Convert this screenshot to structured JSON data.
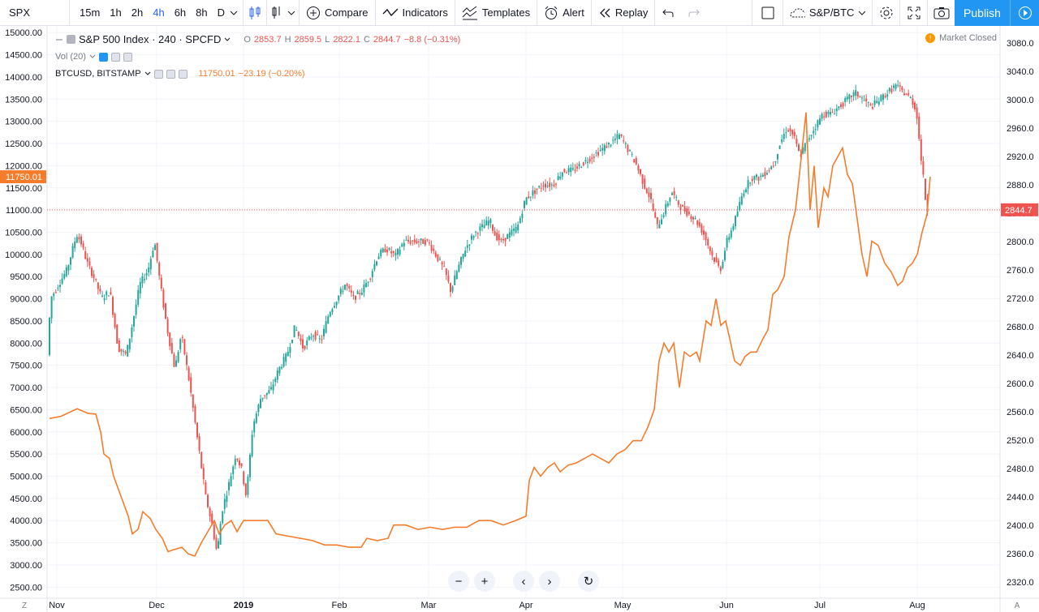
{
  "toolbar": {
    "symbol": "SPX",
    "intervals": [
      "15m",
      "1h",
      "2h",
      "4h",
      "6h",
      "8h",
      "D"
    ],
    "active_interval": "4h",
    "compare": "Compare",
    "indicators": "Indicators",
    "templates": "Templates",
    "alert": "Alert",
    "replay": "Replay",
    "layout_name": "S&P/BTC",
    "publish": "Publish"
  },
  "legend": {
    "main": {
      "title": "S&P 500 Index · 240 · SPCFD",
      "o_label": "O",
      "o": "2853.7",
      "h_label": "H",
      "h": "2859.5",
      "l_label": "L",
      "l": "2822.1",
      "c_label": "C",
      "c": "2844.7",
      "change": "−8.8 (−0.31%)"
    },
    "vol": "Vol (20)",
    "btc": {
      "title": "BTCUSD, BITSTAMP",
      "price": "11750.01",
      "change": "−23.19 (−0.20%)"
    }
  },
  "market_status": "Market Closed",
  "colors": {
    "up": "#26a69a",
    "down": "#ef5350",
    "btc": "#f57c2b",
    "grid": "#f0f3fa",
    "accent": "#2196f3"
  },
  "chart_data": {
    "type": "line",
    "x_labels": [
      "Nov",
      "Dec",
      "2019",
      "Feb",
      "Mar",
      "Apr",
      "May",
      "Jun",
      "Jul",
      "Aug"
    ],
    "left_axis": {
      "ticks": [
        2500,
        3000,
        3500,
        4000,
        4500,
        5000,
        5500,
        6000,
        6500,
        7000,
        7500,
        8000,
        8500,
        9000,
        9500,
        10000,
        10500,
        11000,
        11500,
        12000,
        12500,
        13000,
        13500,
        14000,
        14500,
        15000
      ],
      "range": [
        2250,
        15150
      ],
      "last_label": "11750.01"
    },
    "right_axis": {
      "ticks": [
        2320,
        2360,
        2400,
        2440,
        2480,
        2520,
        2560,
        2600,
        2640,
        2680,
        2720,
        2760,
        2800,
        2840,
        2880,
        2920,
        2960,
        3000,
        3040,
        3080
      ],
      "range": [
        2297,
        3104
      ],
      "last_label": "2844.7"
    },
    "series": [
      {
        "name": "BTCUSD, BITSTAMP",
        "axis": "left",
        "points": [
          [
            61,
            6300
          ],
          [
            75,
            6350
          ],
          [
            95,
            6520
          ],
          [
            108,
            6420
          ],
          [
            118,
            6400
          ],
          [
            124,
            6000
          ],
          [
            128,
            5500
          ],
          [
            135,
            5400
          ],
          [
            140,
            5000
          ],
          [
            148,
            4600
          ],
          [
            158,
            4100
          ],
          [
            163,
            3700
          ],
          [
            170,
            3800
          ],
          [
            176,
            4200
          ],
          [
            185,
            4050
          ],
          [
            192,
            3800
          ],
          [
            200,
            3600
          ],
          [
            207,
            3300
          ],
          [
            215,
            3350
          ],
          [
            224,
            3400
          ],
          [
            232,
            3250
          ],
          [
            240,
            3200
          ],
          [
            248,
            3500
          ],
          [
            256,
            3750
          ],
          [
            264,
            4000
          ],
          [
            270,
            3700
          ],
          [
            277,
            3900
          ],
          [
            285,
            4000
          ],
          [
            292,
            3750
          ],
          [
            300,
            4000
          ],
          [
            315,
            4000
          ],
          [
            330,
            4000
          ],
          [
            340,
            3700
          ],
          [
            355,
            3650
          ],
          [
            370,
            3600
          ],
          [
            385,
            3550
          ],
          [
            400,
            3450
          ],
          [
            415,
            3450
          ],
          [
            430,
            3400
          ],
          [
            445,
            3400
          ],
          [
            452,
            3600
          ],
          [
            465,
            3550
          ],
          [
            478,
            3600
          ],
          [
            485,
            3900
          ],
          [
            500,
            3900
          ],
          [
            515,
            3800
          ],
          [
            530,
            3850
          ],
          [
            545,
            3800
          ],
          [
            560,
            3850
          ],
          [
            575,
            3850
          ],
          [
            590,
            4000
          ],
          [
            605,
            4000
          ],
          [
            620,
            3900
          ],
          [
            635,
            4000
          ],
          [
            648,
            4100
          ],
          [
            652,
            4900
          ],
          [
            658,
            5200
          ],
          [
            666,
            5000
          ],
          [
            675,
            5200
          ],
          [
            683,
            5300
          ],
          [
            690,
            5100
          ],
          [
            700,
            5250
          ],
          [
            710,
            5300
          ],
          [
            720,
            5400
          ],
          [
            730,
            5500
          ],
          [
            740,
            5400
          ],
          [
            750,
            5300
          ],
          [
            760,
            5500
          ],
          [
            770,
            5600
          ],
          [
            780,
            5800
          ],
          [
            790,
            5800
          ],
          [
            798,
            6100
          ],
          [
            806,
            6500
          ],
          [
            812,
            7600
          ],
          [
            818,
            8000
          ],
          [
            824,
            7800
          ],
          [
            830,
            8000
          ],
          [
            837,
            7000
          ],
          [
            843,
            7800
          ],
          [
            850,
            7700
          ],
          [
            858,
            7800
          ],
          [
            862,
            7600
          ],
          [
            870,
            8500
          ],
          [
            876,
            8400
          ],
          [
            882,
            9000
          ],
          [
            888,
            8400
          ],
          [
            894,
            8500
          ],
          [
            899,
            8100
          ],
          [
            905,
            7600
          ],
          [
            912,
            7500
          ],
          [
            918,
            7700
          ],
          [
            925,
            7800
          ],
          [
            932,
            7800
          ],
          [
            940,
            8100
          ],
          [
            946,
            8300
          ],
          [
            952,
            9100
          ],
          [
            958,
            9200
          ],
          [
            966,
            9500
          ],
          [
            972,
            10400
          ],
          [
            980,
            11000
          ],
          [
            986,
            12000
          ],
          [
            993,
            13200
          ],
          [
            998,
            11000
          ],
          [
            1003,
            12000
          ],
          [
            1008,
            10600
          ],
          [
            1015,
            11500
          ],
          [
            1020,
            11300
          ],
          [
            1026,
            12000
          ],
          [
            1032,
            12200
          ],
          [
            1038,
            12400
          ],
          [
            1044,
            11800
          ],
          [
            1050,
            11600
          ],
          [
            1056,
            10800
          ],
          [
            1062,
            10000
          ],
          [
            1068,
            9500
          ],
          [
            1074,
            10300
          ],
          [
            1082,
            10200
          ],
          [
            1090,
            9800
          ],
          [
            1098,
            9600
          ],
          [
            1106,
            9300
          ],
          [
            1112,
            9400
          ],
          [
            1118,
            9700
          ],
          [
            1124,
            9800
          ],
          [
            1130,
            10000
          ],
          [
            1136,
            10500
          ],
          [
            1142,
            10900
          ],
          [
            1146,
            11750
          ]
        ]
      },
      {
        "name": "S&P 500 Index",
        "axis": "right",
        "points": [
          [
            61,
            2640
          ],
          [
            65,
            2720
          ],
          [
            75,
            2740
          ],
          [
            85,
            2760
          ],
          [
            97,
            2810
          ],
          [
            102,
            2800
          ],
          [
            110,
            2770
          ],
          [
            118,
            2750
          ],
          [
            128,
            2720
          ],
          [
            138,
            2730
          ],
          [
            148,
            2650
          ],
          [
            158,
            2640
          ],
          [
            165,
            2680
          ],
          [
            175,
            2740
          ],
          [
            185,
            2760
          ],
          [
            193,
            2800
          ],
          [
            200,
            2740
          ],
          [
            208,
            2680
          ],
          [
            218,
            2620
          ],
          [
            226,
            2670
          ],
          [
            236,
            2600
          ],
          [
            246,
            2520
          ],
          [
            256,
            2440
          ],
          [
            264,
            2400
          ],
          [
            270,
            2360
          ],
          [
            276,
            2420
          ],
          [
            285,
            2460
          ],
          [
            293,
            2500
          ],
          [
            300,
            2480
          ],
          [
            306,
            2440
          ],
          [
            314,
            2540
          ],
          [
            324,
            2580
          ],
          [
            336,
            2590
          ],
          [
            346,
            2620
          ],
          [
            356,
            2640
          ],
          [
            366,
            2680
          ],
          [
            376,
            2650
          ],
          [
            388,
            2670
          ],
          [
            398,
            2660
          ],
          [
            408,
            2700
          ],
          [
            418,
            2720
          ],
          [
            428,
            2740
          ],
          [
            438,
            2720
          ],
          [
            448,
            2730
          ],
          [
            458,
            2750
          ],
          [
            468,
            2780
          ],
          [
            478,
            2790
          ],
          [
            490,
            2780
          ],
          [
            500,
            2800
          ],
          [
            510,
            2800
          ],
          [
            520,
            2800
          ],
          [
            530,
            2800
          ],
          [
            540,
            2780
          ],
          [
            550,
            2760
          ],
          [
            558,
            2730
          ],
          [
            566,
            2760
          ],
          [
            576,
            2790
          ],
          [
            586,
            2810
          ],
          [
            596,
            2820
          ],
          [
            606,
            2830
          ],
          [
            612,
            2810
          ],
          [
            620,
            2800
          ],
          [
            630,
            2810
          ],
          [
            640,
            2820
          ],
          [
            650,
            2860
          ],
          [
            660,
            2870
          ],
          [
            672,
            2880
          ],
          [
            684,
            2880
          ],
          [
            696,
            2900
          ],
          [
            708,
            2900
          ],
          [
            720,
            2910
          ],
          [
            732,
            2920
          ],
          [
            744,
            2930
          ],
          [
            756,
            2940
          ],
          [
            766,
            2950
          ],
          [
            776,
            2930
          ],
          [
            786,
            2910
          ],
          [
            796,
            2880
          ],
          [
            804,
            2860
          ],
          [
            812,
            2820
          ],
          [
            820,
            2840
          ],
          [
            830,
            2870
          ],
          [
            840,
            2850
          ],
          [
            850,
            2840
          ],
          [
            860,
            2830
          ],
          [
            870,
            2810
          ],
          [
            880,
            2780
          ],
          [
            890,
            2760
          ],
          [
            898,
            2800
          ],
          [
            908,
            2830
          ],
          [
            918,
            2870
          ],
          [
            928,
            2890
          ],
          [
            938,
            2890
          ],
          [
            948,
            2900
          ],
          [
            956,
            2910
          ],
          [
            964,
            2940
          ],
          [
            972,
            2960
          ],
          [
            980,
            2950
          ],
          [
            988,
            2920
          ],
          [
            996,
            2940
          ],
          [
            1006,
            2960
          ],
          [
            1016,
            2980
          ],
          [
            1026,
            2980
          ],
          [
            1036,
            2990
          ],
          [
            1046,
            3000
          ],
          [
            1056,
            3010
          ],
          [
            1066,
            3000
          ],
          [
            1076,
            2990
          ],
          [
            1086,
            3000
          ],
          [
            1096,
            3010
          ],
          [
            1106,
            3020
          ],
          [
            1116,
            3010
          ],
          [
            1126,
            3000
          ],
          [
            1132,
            2980
          ],
          [
            1136,
            2930
          ],
          [
            1140,
            2890
          ],
          [
            1144,
            2845
          ]
        ]
      }
    ]
  }
}
